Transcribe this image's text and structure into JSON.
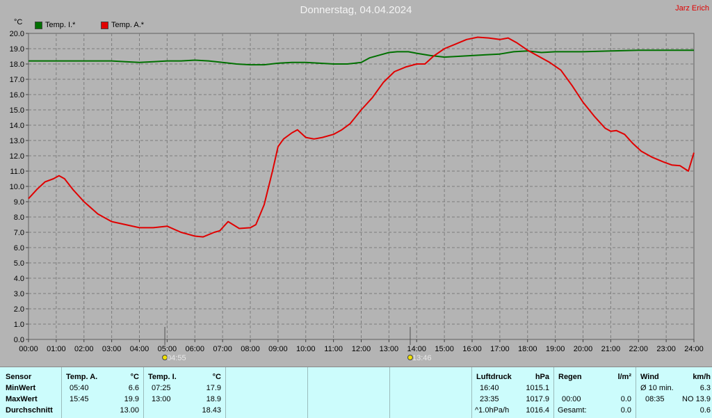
{
  "title": "Donnerstag, 04.04.2024",
  "author": "Jarz Erich",
  "unit": "°C",
  "chart_data": {
    "type": "line",
    "ylim": [
      0,
      20
    ],
    "xlim": [
      0,
      24
    ],
    "grid": true,
    "y_ticks": [
      "0.0",
      "1.0",
      "2.0",
      "3.0",
      "4.0",
      "5.0",
      "6.0",
      "7.0",
      "8.0",
      "9.0",
      "10.0",
      "11.0",
      "12.0",
      "13.0",
      "14.0",
      "15.0",
      "16.0",
      "17.0",
      "18.0",
      "19.0",
      "20.0"
    ],
    "x_ticks": [
      "00:00",
      "01:00",
      "02:00",
      "03:00",
      "04:00",
      "05:00",
      "06:00",
      "07:00",
      "08:00",
      "09:00",
      "10:00",
      "11:00",
      "12:00",
      "13:00",
      "14:00",
      "15:00",
      "16:00",
      "17:00",
      "18:00",
      "19:00",
      "20:00",
      "21:00",
      "22:00",
      "23:00",
      "24:00"
    ],
    "markers": [
      {
        "label": "04:55",
        "x": 4.917,
        "icon": "sunrise"
      },
      {
        "label": "13:46",
        "x": 13.767,
        "icon": "sun-noon"
      }
    ],
    "series": [
      {
        "name": "Temp. I.*",
        "color": "#007000",
        "x": [
          0,
          1,
          2,
          3,
          3.5,
          4,
          4.5,
          5,
          5.5,
          6,
          6.5,
          7,
          7.5,
          8,
          8.5,
          9,
          9.5,
          10,
          10.5,
          11,
          11.5,
          12,
          12.3,
          12.7,
          13,
          13.3,
          13.7,
          14,
          14.5,
          15,
          15.5,
          16,
          16.5,
          17,
          17.5,
          18,
          18.5,
          19,
          20,
          21,
          22,
          23,
          24
        ],
        "y": [
          18.2,
          18.2,
          18.2,
          18.2,
          18.15,
          18.1,
          18.15,
          18.2,
          18.2,
          18.25,
          18.2,
          18.1,
          18.0,
          17.95,
          17.95,
          18.05,
          18.1,
          18.1,
          18.05,
          18.0,
          18.0,
          18.1,
          18.4,
          18.6,
          18.75,
          18.8,
          18.8,
          18.7,
          18.55,
          18.45,
          18.5,
          18.55,
          18.6,
          18.65,
          18.8,
          18.85,
          18.75,
          18.8,
          18.8,
          18.85,
          18.9,
          18.9,
          18.9
        ]
      },
      {
        "name": "Temp. A.*",
        "color": "#e00000",
        "x": [
          0,
          0.3,
          0.6,
          0.9,
          1.1,
          1.3,
          1.6,
          2.0,
          2.5,
          3.0,
          3.5,
          4.0,
          4.5,
          5.0,
          5.5,
          5.7,
          6.0,
          6.3,
          6.7,
          6.9,
          7.2,
          7.6,
          8.0,
          8.2,
          8.5,
          8.8,
          9.0,
          9.2,
          9.5,
          9.7,
          10.0,
          10.3,
          10.6,
          11.0,
          11.3,
          11.6,
          12.0,
          12.4,
          12.8,
          13.2,
          13.6,
          14.0,
          14.3,
          14.6,
          15.0,
          15.4,
          15.8,
          16.2,
          16.6,
          17.0,
          17.3,
          17.6,
          18.0,
          18.4,
          18.8,
          19.2,
          19.6,
          20.0,
          20.4,
          20.8,
          21.0,
          21.2,
          21.5,
          21.8,
          22.1,
          22.5,
          22.9,
          23.2,
          23.5,
          23.8,
          24.0
        ],
        "y": [
          9.2,
          9.8,
          10.3,
          10.5,
          10.7,
          10.5,
          9.8,
          9.0,
          8.2,
          7.7,
          7.5,
          7.3,
          7.3,
          7.4,
          7.0,
          6.9,
          6.75,
          6.7,
          7.0,
          7.1,
          7.7,
          7.25,
          7.3,
          7.5,
          8.8,
          11.0,
          12.6,
          13.1,
          13.5,
          13.7,
          13.2,
          13.1,
          13.2,
          13.4,
          13.7,
          14.1,
          15.0,
          15.8,
          16.8,
          17.5,
          17.8,
          18.0,
          18.0,
          18.5,
          19.0,
          19.3,
          19.6,
          19.75,
          19.7,
          19.6,
          19.7,
          19.4,
          18.9,
          18.5,
          18.1,
          17.6,
          16.6,
          15.5,
          14.6,
          13.8,
          13.6,
          13.65,
          13.4,
          12.8,
          12.3,
          11.9,
          11.6,
          11.4,
          11.35,
          11.0,
          12.2
        ]
      }
    ]
  },
  "stats": {
    "sensor_header": "Sensor",
    "rows": [
      "MinWert",
      "MaxWert",
      "Durchschnitt"
    ],
    "temp_a": {
      "name": "Temp. A.",
      "unit": "°C",
      "min_time": "05:40",
      "min": "6.6",
      "max_time": "15:45",
      "max": "19.9",
      "avg": "13.00"
    },
    "temp_i": {
      "name": "Temp. I.",
      "unit": "°C",
      "min_time": "07:25",
      "min": "17.9",
      "max_time": "13:00",
      "max": "18.9",
      "avg": "18.43"
    },
    "pressure": {
      "name": "Luftdruck",
      "unit": "hPa",
      "min_time": "16:40",
      "min": "1015.1",
      "max_time": "23:35",
      "max": "1017.9",
      "trend": "^1.0hPa/h",
      "current": "1016.4"
    },
    "rain": {
      "name": "Regen",
      "unit": "l/m²",
      "time": "00:00",
      "value": "0.0",
      "total_label": "Gesamt:",
      "total": "0.0"
    },
    "wind": {
      "name": "Wind",
      "unit": "km/h",
      "avg_label": "Ø 10 min.",
      "avg": "6.3",
      "max_time": "08:35",
      "max": "NO 13.9",
      "last": "0.6"
    }
  }
}
